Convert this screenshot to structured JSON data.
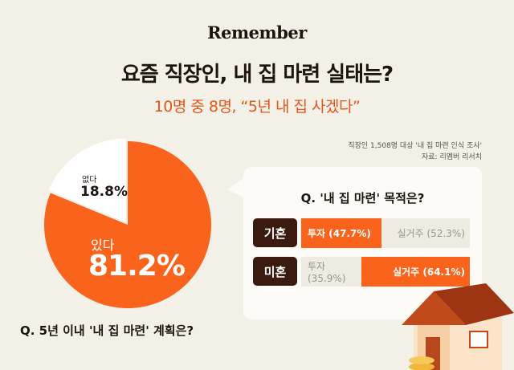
{
  "brand": "Remember",
  "title": "요즘 직장인, 내 집 마련 실태는?",
  "subtitle": "10명 중 8명, “5년 내 집 사겠다”",
  "source": {
    "line1": "직장인 1,508명 대상 '내 집 마련 인식 조사'",
    "line2": "자료: 리멤버 리서치"
  },
  "colors": {
    "accent": "#f9631b",
    "dark": "#3b1a10",
    "background": "#f3f0e8"
  },
  "chart_data": [
    {
      "type": "pie",
      "title": "Q. 5년 이내 '내 집 마련' 계획은?",
      "slices": [
        {
          "label": "있다",
          "value": 81.2,
          "display": "81.2%",
          "color": "#f9631b"
        },
        {
          "label": "없다",
          "value": 18.8,
          "display": "18.8%",
          "color": "#ffffff"
        }
      ]
    },
    {
      "type": "bar",
      "orientation": "horizontal",
      "stacked": true,
      "title": "Q. '내 집 마련' 목적은?",
      "categories": [
        "기혼",
        "미혼"
      ],
      "series": [
        {
          "name": "투자",
          "values": [
            47.7,
            35.9
          ]
        },
        {
          "name": "실거주",
          "values": [
            52.3,
            64.1
          ]
        }
      ],
      "labels": [
        [
          "투자 (47.7%)",
          "실거주 (52.3%)"
        ],
        [
          "투자 (35.9%)",
          "실거주 (64.1%)"
        ]
      ],
      "highlight": [
        "투자",
        "실거주"
      ]
    }
  ]
}
